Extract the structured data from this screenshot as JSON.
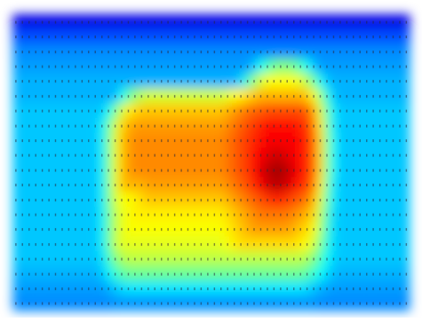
{
  "chart_data": {
    "type": "heatmap",
    "title": "",
    "xlabel": "",
    "ylabel": "",
    "legend": "none",
    "grid": false,
    "value_range": [
      0,
      1
    ],
    "colormap": "jet",
    "rows": 20,
    "cols": 60,
    "cell_glyph": "▮",
    "values": [
      [
        0.1,
        0.1,
        0.1,
        0.1,
        0.1,
        0.1,
        0.1,
        0.1,
        0.1,
        0.1,
        0.1,
        0.1,
        0.1,
        0.1,
        0.1,
        0.1,
        0.1,
        0.1,
        0.1,
        0.1,
        0.1,
        0.1,
        0.1,
        0.1,
        0.1,
        0.1,
        0.1,
        0.1,
        0.1,
        0.1,
        0.1,
        0.1,
        0.1,
        0.1,
        0.1,
        0.1,
        0.1,
        0.1,
        0.1,
        0.1,
        0.1,
        0.1,
        0.1,
        0.1,
        0.1,
        0.1,
        0.1,
        0.1,
        0.1,
        0.1,
        0.1,
        0.1,
        0.1,
        0.1,
        0.1,
        0.1,
        0.1,
        0.1,
        0.1,
        0.1
      ],
      [
        0.2,
        0.2,
        0.2,
        0.2,
        0.2,
        0.2,
        0.2,
        0.2,
        0.2,
        0.2,
        0.2,
        0.2,
        0.2,
        0.2,
        0.2,
        0.2,
        0.2,
        0.2,
        0.2,
        0.2,
        0.2,
        0.2,
        0.2,
        0.2,
        0.2,
        0.2,
        0.2,
        0.2,
        0.2,
        0.2,
        0.2,
        0.2,
        0.2,
        0.2,
        0.2,
        0.2,
        0.2,
        0.2,
        0.2,
        0.2,
        0.2,
        0.2,
        0.2,
        0.2,
        0.2,
        0.2,
        0.2,
        0.2,
        0.2,
        0.2,
        0.2,
        0.2,
        0.2,
        0.2,
        0.2,
        0.2,
        0.2,
        0.2,
        0.2,
        0.2
      ],
      [
        0.26,
        0.26,
        0.26,
        0.26,
        0.26,
        0.26,
        0.26,
        0.26,
        0.26,
        0.26,
        0.26,
        0.26,
        0.26,
        0.26,
        0.26,
        0.26,
        0.26,
        0.26,
        0.26,
        0.26,
        0.26,
        0.26,
        0.26,
        0.26,
        0.26,
        0.26,
        0.26,
        0.26,
        0.26,
        0.26,
        0.26,
        0.26,
        0.26,
        0.26,
        0.26,
        0.26,
        0.26,
        0.26,
        0.26,
        0.26,
        0.26,
        0.26,
        0.26,
        0.26,
        0.26,
        0.26,
        0.26,
        0.26,
        0.26,
        0.26,
        0.26,
        0.26,
        0.26,
        0.26,
        0.26,
        0.26,
        0.26,
        0.26,
        0.26,
        0.26
      ],
      [
        0.28,
        0.28,
        0.28,
        0.28,
        0.28,
        0.28,
        0.28,
        0.28,
        0.28,
        0.28,
        0.28,
        0.28,
        0.28,
        0.28,
        0.28,
        0.28,
        0.28,
        0.28,
        0.28,
        0.28,
        0.28,
        0.28,
        0.28,
        0.28,
        0.28,
        0.28,
        0.28,
        0.28,
        0.28,
        0.28,
        0.28,
        0.28,
        0.28,
        0.28,
        0.28,
        0.28,
        0.32,
        0.38,
        0.44,
        0.48,
        0.5,
        0.5,
        0.48,
        0.44,
        0.38,
        0.32,
        0.28,
        0.28,
        0.28,
        0.28,
        0.28,
        0.28,
        0.28,
        0.28,
        0.28,
        0.28,
        0.28,
        0.28,
        0.28,
        0.28
      ],
      [
        0.3,
        0.3,
        0.3,
        0.3,
        0.3,
        0.3,
        0.3,
        0.3,
        0.3,
        0.3,
        0.3,
        0.3,
        0.3,
        0.3,
        0.3,
        0.3,
        0.3,
        0.3,
        0.3,
        0.3,
        0.3,
        0.3,
        0.3,
        0.3,
        0.3,
        0.3,
        0.3,
        0.3,
        0.3,
        0.3,
        0.3,
        0.3,
        0.3,
        0.3,
        0.34,
        0.42,
        0.52,
        0.58,
        0.62,
        0.62,
        0.62,
        0.62,
        0.62,
        0.6,
        0.55,
        0.48,
        0.38,
        0.32,
        0.3,
        0.3,
        0.3,
        0.3,
        0.3,
        0.3,
        0.3,
        0.3,
        0.3,
        0.3,
        0.3,
        0.3
      ],
      [
        0.3,
        0.3,
        0.3,
        0.3,
        0.3,
        0.3,
        0.3,
        0.3,
        0.3,
        0.3,
        0.3,
        0.3,
        0.3,
        0.3,
        0.3,
        0.3,
        0.38,
        0.46,
        0.52,
        0.56,
        0.58,
        0.58,
        0.58,
        0.58,
        0.58,
        0.58,
        0.58,
        0.58,
        0.58,
        0.58,
        0.58,
        0.58,
        0.6,
        0.62,
        0.64,
        0.66,
        0.68,
        0.7,
        0.7,
        0.7,
        0.7,
        0.7,
        0.7,
        0.7,
        0.68,
        0.62,
        0.52,
        0.4,
        0.32,
        0.3,
        0.3,
        0.3,
        0.3,
        0.3,
        0.3,
        0.3,
        0.3,
        0.3,
        0.3,
        0.3
      ],
      [
        0.32,
        0.32,
        0.32,
        0.32,
        0.32,
        0.32,
        0.32,
        0.32,
        0.32,
        0.32,
        0.32,
        0.32,
        0.32,
        0.32,
        0.38,
        0.48,
        0.58,
        0.64,
        0.66,
        0.68,
        0.68,
        0.68,
        0.68,
        0.68,
        0.68,
        0.68,
        0.68,
        0.68,
        0.68,
        0.68,
        0.68,
        0.68,
        0.7,
        0.72,
        0.74,
        0.76,
        0.78,
        0.78,
        0.8,
        0.8,
        0.8,
        0.8,
        0.8,
        0.8,
        0.78,
        0.72,
        0.6,
        0.46,
        0.36,
        0.32,
        0.32,
        0.32,
        0.32,
        0.32,
        0.32,
        0.32,
        0.32,
        0.32,
        0.32,
        0.32
      ],
      [
        0.32,
        0.32,
        0.32,
        0.32,
        0.32,
        0.32,
        0.32,
        0.32,
        0.32,
        0.32,
        0.32,
        0.32,
        0.32,
        0.36,
        0.46,
        0.58,
        0.66,
        0.7,
        0.72,
        0.72,
        0.72,
        0.72,
        0.72,
        0.72,
        0.72,
        0.72,
        0.72,
        0.72,
        0.72,
        0.72,
        0.72,
        0.72,
        0.74,
        0.76,
        0.78,
        0.8,
        0.82,
        0.84,
        0.86,
        0.86,
        0.86,
        0.86,
        0.86,
        0.84,
        0.82,
        0.76,
        0.64,
        0.48,
        0.36,
        0.32,
        0.32,
        0.32,
        0.32,
        0.32,
        0.32,
        0.32,
        0.32,
        0.32,
        0.32,
        0.32
      ],
      [
        0.32,
        0.32,
        0.32,
        0.32,
        0.32,
        0.32,
        0.32,
        0.32,
        0.32,
        0.32,
        0.32,
        0.32,
        0.32,
        0.36,
        0.48,
        0.6,
        0.68,
        0.72,
        0.74,
        0.74,
        0.74,
        0.74,
        0.74,
        0.74,
        0.74,
        0.74,
        0.74,
        0.74,
        0.74,
        0.74,
        0.74,
        0.74,
        0.76,
        0.78,
        0.8,
        0.82,
        0.84,
        0.86,
        0.88,
        0.88,
        0.88,
        0.88,
        0.88,
        0.86,
        0.84,
        0.78,
        0.66,
        0.5,
        0.38,
        0.32,
        0.32,
        0.32,
        0.32,
        0.32,
        0.32,
        0.32,
        0.32,
        0.32,
        0.32,
        0.32
      ],
      [
        0.32,
        0.32,
        0.32,
        0.32,
        0.32,
        0.32,
        0.32,
        0.32,
        0.32,
        0.32,
        0.32,
        0.32,
        0.32,
        0.36,
        0.48,
        0.6,
        0.68,
        0.72,
        0.74,
        0.74,
        0.74,
        0.74,
        0.74,
        0.74,
        0.74,
        0.74,
        0.74,
        0.74,
        0.74,
        0.74,
        0.74,
        0.74,
        0.76,
        0.78,
        0.8,
        0.82,
        0.86,
        0.88,
        0.9,
        0.92,
        0.92,
        0.9,
        0.88,
        0.86,
        0.84,
        0.78,
        0.66,
        0.5,
        0.38,
        0.32,
        0.32,
        0.32,
        0.32,
        0.32,
        0.32,
        0.32,
        0.32,
        0.32,
        0.32,
        0.32
      ],
      [
        0.32,
        0.32,
        0.32,
        0.32,
        0.32,
        0.32,
        0.32,
        0.32,
        0.32,
        0.32,
        0.32,
        0.32,
        0.32,
        0.36,
        0.48,
        0.6,
        0.68,
        0.72,
        0.74,
        0.74,
        0.74,
        0.74,
        0.74,
        0.74,
        0.74,
        0.74,
        0.74,
        0.74,
        0.74,
        0.74,
        0.74,
        0.74,
        0.76,
        0.78,
        0.8,
        0.82,
        0.86,
        0.9,
        0.94,
        0.96,
        0.96,
        0.94,
        0.9,
        0.86,
        0.84,
        0.78,
        0.66,
        0.5,
        0.38,
        0.32,
        0.32,
        0.32,
        0.32,
        0.32,
        0.32,
        0.32,
        0.32,
        0.32,
        0.32,
        0.32
      ],
      [
        0.32,
        0.32,
        0.32,
        0.32,
        0.32,
        0.32,
        0.32,
        0.32,
        0.32,
        0.32,
        0.32,
        0.32,
        0.32,
        0.36,
        0.48,
        0.6,
        0.68,
        0.7,
        0.7,
        0.7,
        0.72,
        0.72,
        0.72,
        0.72,
        0.72,
        0.72,
        0.72,
        0.72,
        0.72,
        0.72,
        0.72,
        0.72,
        0.74,
        0.76,
        0.78,
        0.8,
        0.84,
        0.88,
        0.92,
        0.94,
        0.94,
        0.92,
        0.88,
        0.84,
        0.82,
        0.76,
        0.64,
        0.48,
        0.36,
        0.32,
        0.32,
        0.32,
        0.32,
        0.32,
        0.32,
        0.32,
        0.32,
        0.32,
        0.32,
        0.32
      ],
      [
        0.32,
        0.32,
        0.32,
        0.32,
        0.32,
        0.32,
        0.32,
        0.32,
        0.32,
        0.32,
        0.32,
        0.32,
        0.32,
        0.36,
        0.48,
        0.58,
        0.62,
        0.62,
        0.64,
        0.66,
        0.68,
        0.68,
        0.68,
        0.68,
        0.68,
        0.68,
        0.68,
        0.68,
        0.68,
        0.68,
        0.68,
        0.68,
        0.7,
        0.72,
        0.74,
        0.76,
        0.78,
        0.8,
        0.82,
        0.84,
        0.84,
        0.82,
        0.8,
        0.78,
        0.76,
        0.7,
        0.6,
        0.46,
        0.36,
        0.32,
        0.32,
        0.32,
        0.32,
        0.32,
        0.32,
        0.32,
        0.32,
        0.32,
        0.32,
        0.32
      ],
      [
        0.32,
        0.32,
        0.32,
        0.32,
        0.32,
        0.32,
        0.32,
        0.32,
        0.32,
        0.32,
        0.32,
        0.32,
        0.32,
        0.36,
        0.46,
        0.56,
        0.6,
        0.62,
        0.64,
        0.64,
        0.64,
        0.64,
        0.64,
        0.64,
        0.64,
        0.64,
        0.64,
        0.64,
        0.64,
        0.64,
        0.64,
        0.64,
        0.66,
        0.68,
        0.7,
        0.72,
        0.74,
        0.76,
        0.76,
        0.76,
        0.76,
        0.76,
        0.74,
        0.72,
        0.7,
        0.66,
        0.56,
        0.44,
        0.34,
        0.32,
        0.32,
        0.32,
        0.32,
        0.32,
        0.32,
        0.32,
        0.32,
        0.32,
        0.32,
        0.32
      ],
      [
        0.32,
        0.32,
        0.32,
        0.32,
        0.32,
        0.32,
        0.32,
        0.32,
        0.32,
        0.32,
        0.32,
        0.32,
        0.32,
        0.36,
        0.46,
        0.56,
        0.6,
        0.62,
        0.62,
        0.62,
        0.62,
        0.62,
        0.62,
        0.62,
        0.62,
        0.62,
        0.62,
        0.62,
        0.62,
        0.62,
        0.62,
        0.62,
        0.64,
        0.66,
        0.68,
        0.7,
        0.72,
        0.72,
        0.72,
        0.72,
        0.72,
        0.72,
        0.7,
        0.68,
        0.66,
        0.62,
        0.54,
        0.42,
        0.34,
        0.32,
        0.32,
        0.32,
        0.32,
        0.32,
        0.32,
        0.32,
        0.32,
        0.32,
        0.32,
        0.32
      ],
      [
        0.32,
        0.32,
        0.32,
        0.32,
        0.32,
        0.32,
        0.32,
        0.32,
        0.32,
        0.32,
        0.32,
        0.32,
        0.32,
        0.36,
        0.46,
        0.56,
        0.6,
        0.6,
        0.6,
        0.6,
        0.6,
        0.6,
        0.6,
        0.6,
        0.6,
        0.6,
        0.6,
        0.6,
        0.6,
        0.6,
        0.6,
        0.6,
        0.62,
        0.64,
        0.66,
        0.66,
        0.66,
        0.66,
        0.66,
        0.66,
        0.66,
        0.66,
        0.66,
        0.64,
        0.62,
        0.58,
        0.5,
        0.4,
        0.34,
        0.32,
        0.32,
        0.32,
        0.32,
        0.32,
        0.32,
        0.32,
        0.32,
        0.32,
        0.32,
        0.32
      ],
      [
        0.32,
        0.32,
        0.32,
        0.32,
        0.32,
        0.32,
        0.32,
        0.32,
        0.32,
        0.32,
        0.32,
        0.32,
        0.32,
        0.34,
        0.42,
        0.5,
        0.54,
        0.56,
        0.56,
        0.56,
        0.56,
        0.56,
        0.56,
        0.56,
        0.56,
        0.56,
        0.56,
        0.56,
        0.56,
        0.56,
        0.56,
        0.56,
        0.56,
        0.56,
        0.56,
        0.56,
        0.56,
        0.56,
        0.56,
        0.56,
        0.56,
        0.56,
        0.56,
        0.56,
        0.54,
        0.5,
        0.44,
        0.38,
        0.33,
        0.32,
        0.32,
        0.32,
        0.32,
        0.32,
        0.32,
        0.32,
        0.32,
        0.32,
        0.32,
        0.32
      ],
      [
        0.3,
        0.3,
        0.3,
        0.3,
        0.3,
        0.3,
        0.3,
        0.3,
        0.3,
        0.3,
        0.3,
        0.3,
        0.3,
        0.32,
        0.36,
        0.42,
        0.46,
        0.48,
        0.48,
        0.48,
        0.48,
        0.48,
        0.48,
        0.48,
        0.48,
        0.48,
        0.48,
        0.48,
        0.48,
        0.48,
        0.48,
        0.48,
        0.48,
        0.48,
        0.48,
        0.48,
        0.48,
        0.48,
        0.48,
        0.48,
        0.48,
        0.48,
        0.48,
        0.48,
        0.46,
        0.42,
        0.38,
        0.34,
        0.31,
        0.3,
        0.3,
        0.3,
        0.3,
        0.3,
        0.3,
        0.3,
        0.3,
        0.3,
        0.3,
        0.3
      ],
      [
        0.28,
        0.28,
        0.28,
        0.28,
        0.28,
        0.28,
        0.28,
        0.28,
        0.28,
        0.28,
        0.28,
        0.28,
        0.28,
        0.28,
        0.3,
        0.32,
        0.34,
        0.35,
        0.35,
        0.35,
        0.35,
        0.35,
        0.35,
        0.35,
        0.35,
        0.35,
        0.35,
        0.35,
        0.35,
        0.35,
        0.35,
        0.35,
        0.35,
        0.35,
        0.35,
        0.35,
        0.35,
        0.35,
        0.35,
        0.35,
        0.35,
        0.35,
        0.35,
        0.35,
        0.34,
        0.32,
        0.3,
        0.29,
        0.28,
        0.28,
        0.28,
        0.28,
        0.28,
        0.28,
        0.28,
        0.28,
        0.28,
        0.28,
        0.28,
        0.28
      ],
      [
        0.26,
        0.26,
        0.26,
        0.26,
        0.26,
        0.26,
        0.26,
        0.26,
        0.26,
        0.26,
        0.26,
        0.26,
        0.26,
        0.26,
        0.26,
        0.27,
        0.27,
        0.27,
        0.27,
        0.27,
        0.27,
        0.27,
        0.27,
        0.27,
        0.27,
        0.27,
        0.27,
        0.27,
        0.27,
        0.27,
        0.27,
        0.27,
        0.27,
        0.27,
        0.27,
        0.27,
        0.27,
        0.27,
        0.27,
        0.27,
        0.27,
        0.27,
        0.27,
        0.27,
        0.27,
        0.27,
        0.26,
        0.26,
        0.26,
        0.26,
        0.26,
        0.26,
        0.26,
        0.26,
        0.26,
        0.26,
        0.26,
        0.26,
        0.26,
        0.26
      ]
    ]
  }
}
